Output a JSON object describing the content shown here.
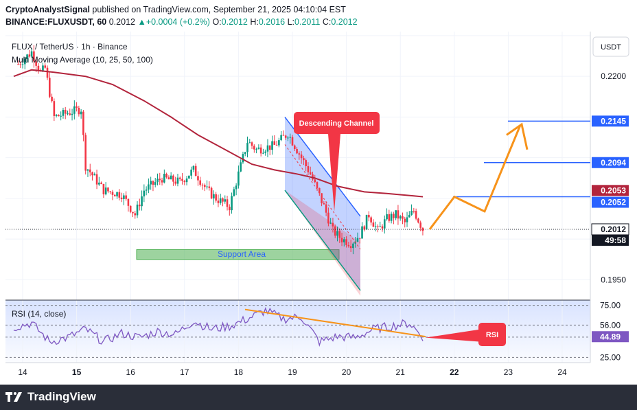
{
  "header": {
    "author": "CryptoAnalystSignal",
    "published": "published on TradingView.com, September 21, 2025 04:10:04 EST",
    "symbol": "BINANCE:FLUXUSDT, 60",
    "price": "0.2012",
    "change": "+0.0004 (+0.2%)",
    "o_label": "O:",
    "o": "0.2012",
    "h_label": "H:",
    "h": "0.2016",
    "l_label": "L:",
    "l": "0.2011",
    "c_label": "C:",
    "c": "0.2012"
  },
  "chart_title": "FLUX / TetherUS · 1h · Binance",
  "indicator_label": "Multi Moving Average (10, 25, 50, 100)",
  "currency": "USDT",
  "price_axis": {
    "ticks": [
      "0.2200",
      "0.1950"
    ],
    "labels": [
      {
        "text": "0.2145",
        "color": "#2962ff"
      },
      {
        "text": "0.2094",
        "color": "#2962ff"
      },
      {
        "text": "0.2053",
        "color": "#b2243c"
      },
      {
        "text": "0.2052",
        "color": "#2962ff"
      },
      {
        "text": "0.2012",
        "color": "#131722"
      },
      {
        "text": "49:58",
        "color": "#131722"
      }
    ]
  },
  "rsi": {
    "label": "RSI (14, close)",
    "ticks": [
      "75.00",
      "56.00",
      "44.50",
      "25.00"
    ],
    "value": "44.89",
    "value_color": "#7e57c2"
  },
  "time_axis": [
    "14",
    "15",
    "16",
    "17",
    "18",
    "19",
    "20",
    "21",
    "22",
    "23",
    "24"
  ],
  "annotations": {
    "descending_channel": "Descending Channel",
    "support_area": "Support Area",
    "rsi_callout": "RSI"
  },
  "colors": {
    "up": "#089981",
    "down": "#f23645",
    "ma": "#b2243c",
    "rsi_line": "#7e57c2",
    "orange": "#f7931a",
    "blue": "#2962ff",
    "callout": "#f23645",
    "support": "#4caf50"
  },
  "footer": {
    "brand": "TradingView"
  },
  "chart_data": {
    "type": "line",
    "title": "FLUX / TetherUS · 1h · Binance",
    "ylabel": "USDT",
    "ylim": [
      0.1925,
      0.2255
    ],
    "x_ticks": [
      "14",
      "15",
      "16",
      "17",
      "18",
      "19",
      "20",
      "21",
      "22",
      "23",
      "24"
    ],
    "series": [
      {
        "name": "FLUX / TetherUS",
        "x": [
          "13 22:00",
          "14 04:00",
          "14 08:00",
          "14 10:00",
          "14 14:00",
          "14 20:00",
          "15 02:00",
          "15 04:00",
          "15 12:00",
          "15 20:00",
          "16 02:00",
          "16 06:00",
          "16 14:00",
          "16 22:00",
          "17 04:00",
          "17 10:00",
          "17 14:00",
          "17 20:00",
          "18 00:00",
          "18 04:00",
          "18 08:00",
          "18 16:00",
          "18 22:00",
          "19 02:00",
          "19 08:00",
          "19 14:00",
          "19 18:00",
          "19 22:00",
          "20 02:00",
          "20 06:00",
          "20 10:00",
          "20 14:00",
          "20 18:00",
          "20 22:00",
          "21 02:00",
          "21 06:00",
          "21 10:00"
        ],
        "values": [
          0.2215,
          0.223,
          0.2205,
          0.221,
          0.215,
          0.2155,
          0.216,
          0.209,
          0.206,
          0.2055,
          0.203,
          0.206,
          0.2075,
          0.207,
          0.2085,
          0.206,
          0.205,
          0.204,
          0.208,
          0.212,
          0.211,
          0.2115,
          0.213,
          0.211,
          0.208,
          0.204,
          0.201,
          0.2,
          0.1995,
          0.2005,
          0.203,
          0.201,
          0.2025,
          0.203,
          0.202,
          0.2035,
          0.2012
        ]
      },
      {
        "name": "Multi Moving Average (10, 25, 50, 100)",
        "x": [
          "13 20:00",
          "14 04:00",
          "14 14:00",
          "15 04:00",
          "15 16:00",
          "16 06:00",
          "16 18:00",
          "17 06:00",
          "17 18:00",
          "18 06:00",
          "18 16:00",
          "19 02:00",
          "19 10:00",
          "19 20:00",
          "20 08:00",
          "20 18:00",
          "21 06:00",
          "21 10:00"
        ],
        "values": [
          0.22,
          0.2208,
          0.2205,
          0.22,
          0.219,
          0.217,
          0.215,
          0.2128,
          0.211,
          0.2092,
          0.2085,
          0.208,
          0.2075,
          0.2065,
          0.2058,
          0.2056,
          0.2053,
          0.2052
        ]
      }
    ],
    "rsi_series": {
      "name": "RSI (14, close)",
      "ylim": [
        20,
        80
      ],
      "x": [
        "13 20:00",
        "14 04:00",
        "14 12:00",
        "14 20:00",
        "15 04:00",
        "15 12:00",
        "15 20:00",
        "16 04:00",
        "16 12:00",
        "16 20:00",
        "17 04:00",
        "17 12:00",
        "17 20:00",
        "18 04:00",
        "18 12:00",
        "18 20:00",
        "19 04:00",
        "19 12:00",
        "19 20:00",
        "20 04:00",
        "20 12:00",
        "20 20:00",
        "21 04:00",
        "21 10:00"
      ],
      "values": [
        54,
        58,
        40,
        44,
        52,
        40,
        48,
        44,
        50,
        47,
        60,
        52,
        55,
        62,
        70,
        62,
        64,
        40,
        45,
        44,
        52,
        55,
        58,
        44.89
      ]
    },
    "annotations": [
      "Descending Channel",
      "Support Area",
      "RSI"
    ],
    "horizontal_levels": [
      0.2145,
      0.2094,
      0.2052
    ],
    "grid": true,
    "legend": "top-left"
  }
}
